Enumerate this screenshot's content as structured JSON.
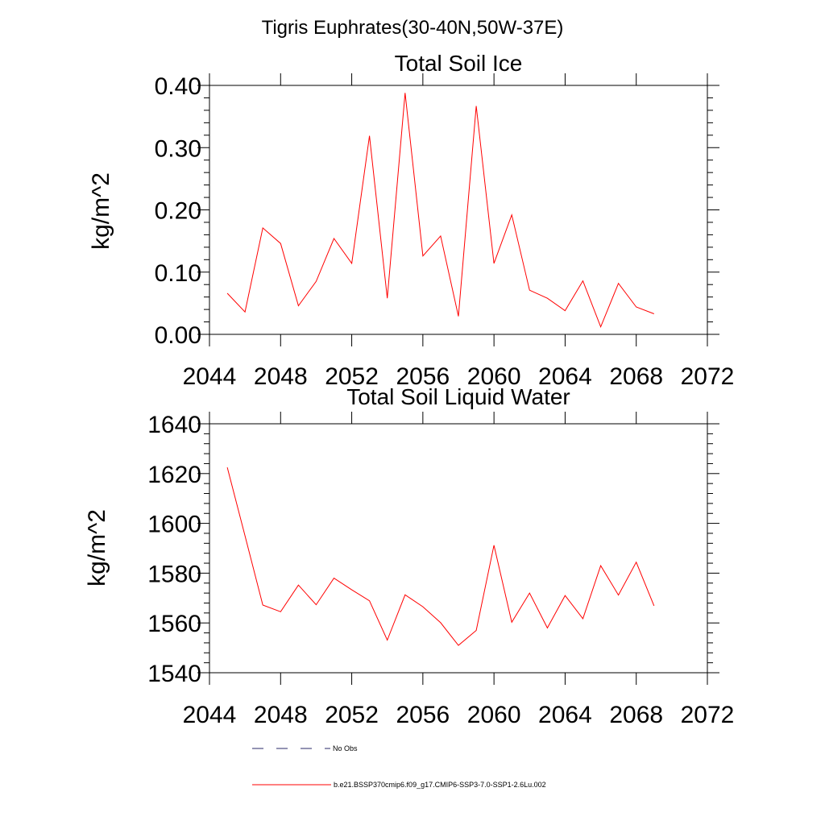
{
  "figure": {
    "title": "Tigris Euphrates(30-40N,50W-37E)"
  },
  "chart_data": [
    {
      "type": "line",
      "title": "Total Soil Ice",
      "xlabel": "",
      "ylabel": "kg/m^2",
      "xlim": [
        2044,
        2072
      ],
      "ylim": [
        0.0,
        0.4
      ],
      "xticks": [
        "2044",
        "2048",
        "2052",
        "2056",
        "2060",
        "2064",
        "2068",
        "2072"
      ],
      "yticks": [
        "0.00",
        "0.10",
        "0.20",
        "0.30",
        "0.40"
      ],
      "grid": false,
      "x": [
        2045,
        2046,
        2047,
        2048,
        2049,
        2050,
        2051,
        2052,
        2053,
        2054,
        2055,
        2056,
        2057,
        2058,
        2059,
        2060,
        2061,
        2062,
        2063,
        2064,
        2065,
        2066,
        2067,
        2068,
        2069
      ],
      "series": [
        {
          "color": "#ff0000",
          "values": [
            0.066,
            0.036,
            0.171,
            0.146,
            0.046,
            0.085,
            0.154,
            0.114,
            0.319,
            0.058,
            0.388,
            0.126,
            0.158,
            0.029,
            0.367,
            0.114,
            0.192,
            0.071,
            0.058,
            0.038,
            0.086,
            0.012,
            0.082,
            0.044,
            0.033
          ]
        }
      ]
    },
    {
      "type": "line",
      "title": "Total Soil Liquid Water",
      "xlabel": "",
      "ylabel": "kg/m^2",
      "xlim": [
        2044,
        2072
      ],
      "ylim": [
        1540,
        1640
      ],
      "xticks": [
        "2044",
        "2048",
        "2052",
        "2056",
        "2060",
        "2064",
        "2068",
        "2072"
      ],
      "yticks": [
        "1540",
        "1560",
        "1580",
        "1600",
        "1620",
        "1640"
      ],
      "grid": false,
      "x": [
        2045,
        2046,
        2047,
        2048,
        2049,
        2050,
        2051,
        2052,
        2053,
        2054,
        2055,
        2056,
        2057,
        2058,
        2059,
        2060,
        2061,
        2062,
        2063,
        2064,
        2065,
        2066,
        2067,
        2068,
        2069
      ],
      "series": [
        {
          "color": "#ff0000",
          "values": [
            1622.5,
            1595.0,
            1567.2,
            1564.5,
            1575.2,
            1567.3,
            1578.0,
            1573.3,
            1568.9,
            1553.1,
            1571.3,
            1566.5,
            1560.1,
            1551.0,
            1557.0,
            1591.2,
            1560.3,
            1572.0,
            1558.0,
            1571.0,
            1561.7,
            1583.0,
            1571.2,
            1584.4,
            1566.9
          ]
        }
      ]
    }
  ],
  "legend": [
    {
      "label": "No Obs",
      "color": "#2a2a6a",
      "dash": "dashed"
    },
    {
      "label": "b.e21.BSSP370cmip6.f09_g17.CMIP6-SSP3-7.0-SSP1-2.6Lu.002",
      "color": "#ff0000",
      "dash": "solid"
    }
  ]
}
